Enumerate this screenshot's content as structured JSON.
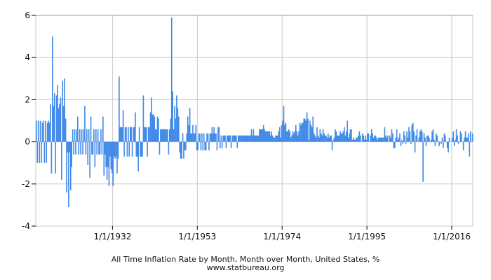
{
  "chart_data": {
    "type": "bar",
    "title": "All Time Inflation Rate by Month, Month over Month, United States, %",
    "source": "www.statbureau.org",
    "xlabel": "",
    "ylabel": "",
    "ylim": [
      -4,
      6
    ],
    "xlim": [
      1913.0,
      2021.2
    ],
    "y_ticks": [
      "6",
      "4",
      "2",
      "0",
      "-2",
      "-4"
    ],
    "x_ticks": [
      {
        "label": "1/1/1932",
        "year": 1932
      },
      {
        "label": "1/1/1953",
        "year": 1953
      },
      {
        "label": "1/1/1974",
        "year": 1974
      },
      {
        "label": "1/1/1995",
        "year": 1995
      },
      {
        "label": "1/1/2016",
        "year": 2016
      }
    ],
    "grid": true,
    "color": "#428be8",
    "series_start_year": 1913,
    "series_step_years": 0.25,
    "values": [
      1.0,
      -1.0,
      1.0,
      -1.0,
      1.0,
      -1.0,
      0.9,
      1.0,
      -1.0,
      1.0,
      -1.0,
      0.9,
      1.0,
      0.9,
      1.8,
      -1.5,
      5.0,
      1.7,
      2.3,
      -1.5,
      2.2,
      2.7,
      1.6,
      1.8,
      2.1,
      -1.8,
      2.9,
      1.7,
      3.0,
      1.1,
      -2.4,
      -0.5,
      -3.1,
      -0.5,
      -2.3,
      -1.2,
      0.6,
      -0.6,
      0.6,
      -0.6,
      0.6,
      1.2,
      -0.6,
      0.6,
      -0.6,
      0.6,
      -0.6,
      0.6,
      1.7,
      -0.6,
      0.6,
      -1.1,
      0.6,
      -1.7,
      1.2,
      -0.6,
      -0.6,
      0.6,
      -1.2,
      0.6,
      -0.6,
      0.6,
      -0.6,
      -0.6,
      0.6,
      -0.6,
      1.2,
      -1.6,
      -0.6,
      -1.2,
      -1.8,
      -1.2,
      -2.1,
      -0.7,
      -1.3,
      -1.5,
      -2.1,
      -0.7,
      -0.8,
      -0.7,
      -1.5,
      -0.8,
      3.1,
      0.7,
      0.7,
      0.7,
      1.5,
      -0.7,
      0.7,
      0.7,
      -0.7,
      0.7,
      -0.7,
      0.7,
      0.7,
      -0.7,
      0.7,
      0.7,
      1.4,
      -0.7,
      -0.7,
      -1.4,
      0.7,
      -0.7,
      -0.7,
      -0.7,
      2.2,
      0.7,
      0.7,
      0.7,
      -0.7,
      0.7,
      0.7,
      1.4,
      2.1,
      1.3,
      1.3,
      1.2,
      0.6,
      0.6,
      1.2,
      1.1,
      -0.6,
      0.6,
      0.6,
      0.6,
      0.6,
      0.6,
      0.6,
      0.6,
      0.6,
      -0.6,
      0.6,
      1.1,
      5.9,
      2.4,
      0.6,
      1.7,
      1.1,
      2.2,
      1.6,
      1.2,
      -0.5,
      -0.8,
      -0.8,
      0.4,
      -0.8,
      -0.4,
      -0.4,
      0.4,
      1.2,
      0.8,
      1.6,
      0.4,
      0.4,
      0.8,
      0.4,
      0.4,
      0.8,
      -0.4,
      -0.4,
      0.4,
      0.4,
      -0.4,
      0.4,
      -0.4,
      0.4,
      -0.4,
      -0.4,
      0.4,
      0.4,
      -0.4,
      0.4,
      0.4,
      0.7,
      0.4,
      0.7,
      0.4,
      0.4,
      -0.4,
      0.7,
      0.7,
      -0.3,
      0.3,
      -0.3,
      0.3,
      0.3,
      0.3,
      -0.3,
      0.3,
      0.3,
      0.3,
      0.3,
      -0.3,
      0.3,
      0.3,
      0.3,
      0.3,
      0.3,
      -0.3,
      0.3,
      0.3,
      0.3,
      0.3,
      0.3,
      0.3,
      0.3,
      0.3,
      0.3,
      0.3,
      0.3,
      0.3,
      0.3,
      0.6,
      0.3,
      0.6,
      0.3,
      0.3,
      0.3,
      0.3,
      0.3,
      0.6,
      0.6,
      0.6,
      0.6,
      0.8,
      0.6,
      0.5,
      0.5,
      0.5,
      0.5,
      0.5,
      0.3,
      0.5,
      0.3,
      0.2,
      0.2,
      0.3,
      0.3,
      0.3,
      0.5,
      0.7,
      0.2,
      0.8,
      1.0,
      1.7,
      0.8,
      0.9,
      0.5,
      0.5,
      0.6,
      0.5,
      0.2,
      0.3,
      0.5,
      0.4,
      0.5,
      0.8,
      0.5,
      0.3,
      0.5,
      0.9,
      0.8,
      0.9,
      0.9,
      1.1,
      1.1,
      1.0,
      1.4,
      1.1,
      0.1,
      1.0,
      0.8,
      0.7,
      1.2,
      0.4,
      0.3,
      0.2,
      0.7,
      0.3,
      0.2,
      0.6,
      0.4,
      0.3,
      0.6,
      0.4,
      0.3,
      0.3,
      0.2,
      0.4,
      0.2,
      0.3,
      0.3,
      -0.4,
      0.1,
      0.2,
      0.6,
      0.5,
      0.3,
      0.3,
      0.3,
      0.5,
      0.4,
      0.4,
      0.5,
      0.7,
      0.3,
      0.5,
      1.0,
      0.2,
      0.4,
      0.6,
      0.6,
      0.1,
      0.2,
      0.1,
      0.1,
      0.2,
      0.2,
      0.3,
      0.5,
      0.3,
      0.0,
      0.4,
      0.3,
      0.1,
      0.3,
      0.1,
      0.4,
      0.4,
      0.0,
      0.3,
      0.6,
      0.4,
      0.2,
      0.3,
      0.3,
      0.2,
      0.1,
      0.2,
      0.2,
      0.2,
      0.2,
      0.2,
      0.2,
      0.7,
      0.3,
      0.2,
      0.3,
      0.0,
      0.3,
      0.2,
      0.6,
      0.4,
      -0.3,
      -0.3,
      0.2,
      0.6,
      0.1,
      0.2,
      0.4,
      -0.2,
      0.1,
      -0.1,
      0.5,
      0.3,
      -0.1,
      0.5,
      0.2,
      0.7,
      0.5,
      -0.1,
      0.8,
      0.9,
      0.5,
      -0.5,
      0.3,
      0.6,
      0.0,
      0.2,
      0.5,
      0.6,
      0.5,
      -1.9,
      0.4,
      0.2,
      -0.2,
      0.3,
      0.3,
      0.2,
      0.0,
      0.1,
      0.5,
      0.6,
      0.1,
      -0.2,
      0.4,
      0.3,
      0.0,
      -0.2,
      0.0,
      -0.1,
      0.2,
      -0.3,
      0.4,
      0.3,
      0.0,
      -0.3,
      -0.5,
      0.2,
      0.0,
      0.0,
      0.2,
      0.5,
      -0.2,
      0.1,
      0.6,
      0.3,
      -0.1,
      0.0,
      0.5,
      0.4,
      0.0,
      -0.4,
      0.2,
      0.5,
      0.2,
      0.2,
      0.4,
      -0.7,
      0.5,
      0.0,
      0.4
    ]
  }
}
